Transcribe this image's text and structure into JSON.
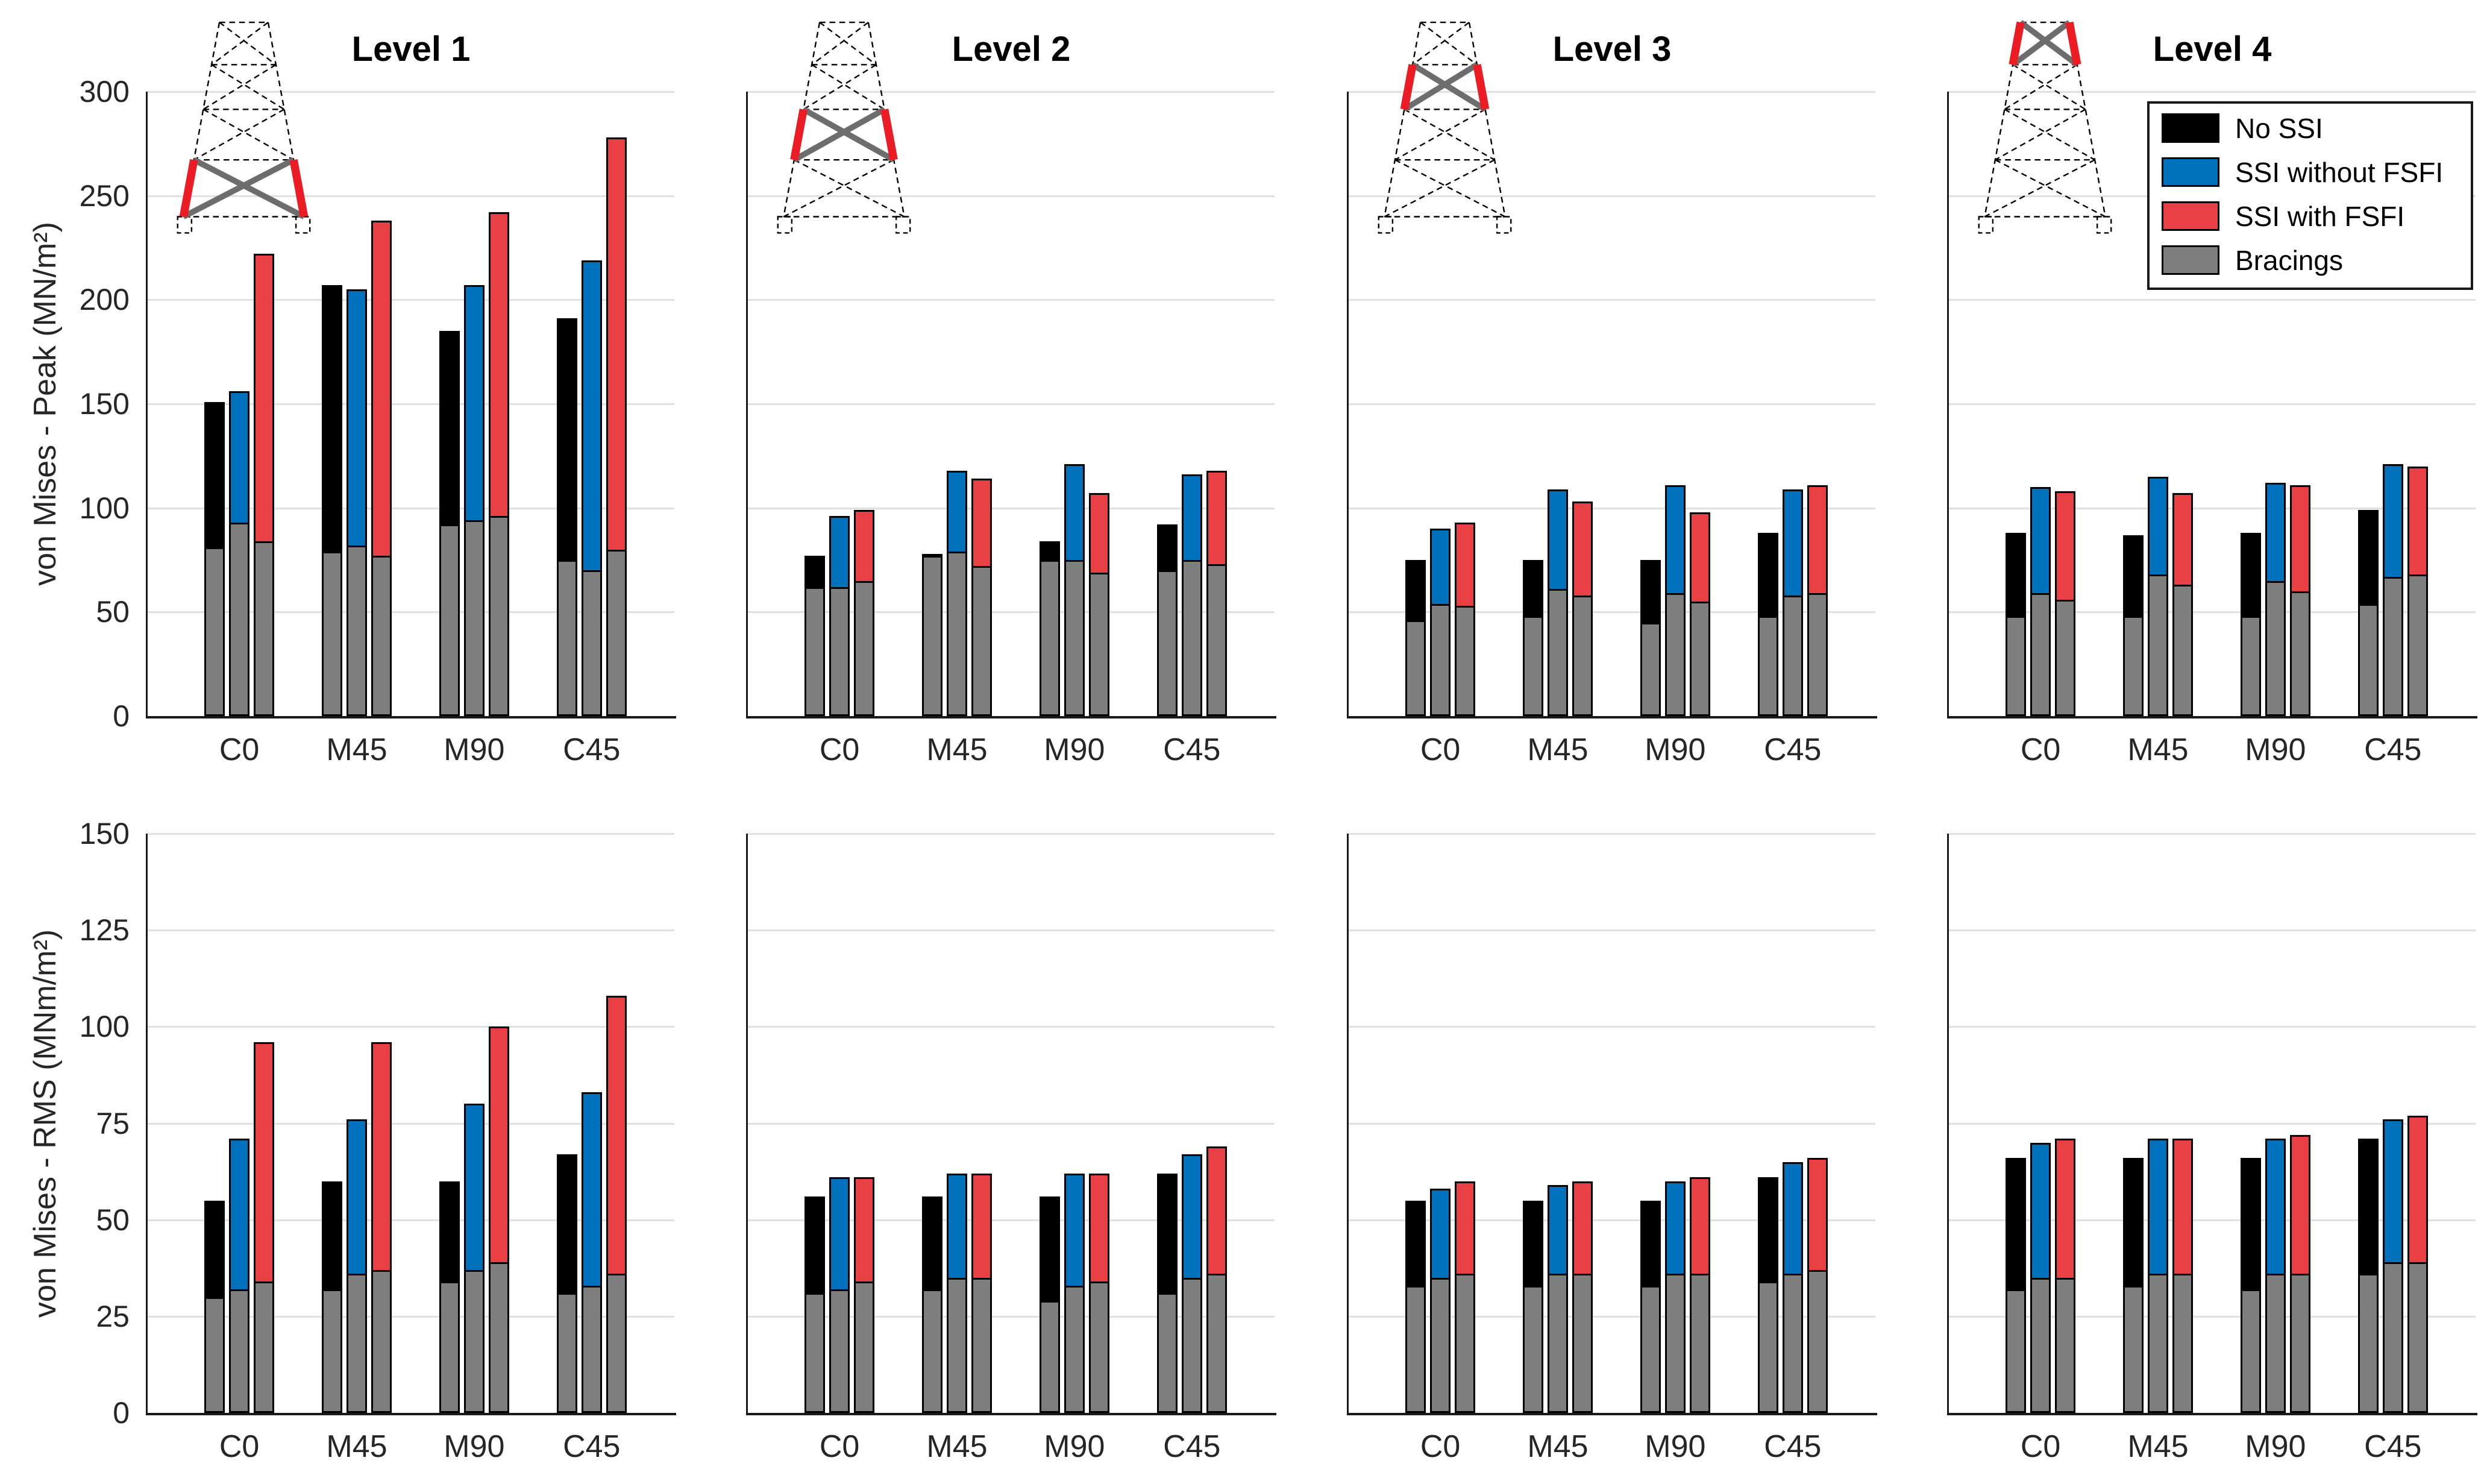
{
  "figure": {
    "background": "#FFFFFF",
    "titles": [
      "Level 1",
      "Level 2",
      "Level 3",
      "Level 4"
    ],
    "legend": {
      "items": [
        {
          "label": "No SSI",
          "color": "#000000"
        },
        {
          "label": "SSI without FSFI",
          "color": "#0072BD"
        },
        {
          "label": "SSI with FSFI",
          "color": "#E84045"
        },
        {
          "label": "Bracings",
          "color": "#7F7F7F"
        }
      ]
    },
    "icon_colors": {
      "highlight_leg_red": "#EC1C24",
      "highlight_brace_gray": "#6D6D6D",
      "outline": "#000000"
    }
  },
  "chart_data": {
    "type": "bar",
    "categories": [
      "C0",
      "M45",
      "M90",
      "C45"
    ],
    "series": [
      "No SSI",
      "SSI without FSFI",
      "SSI with FSFI"
    ],
    "overlay_series": "Bracings",
    "colors": {
      "No SSI": "#000000",
      "SSI without FSFI": "#0072BD",
      "SSI with FSFI": "#E84045",
      "Bracings": "#7F7F7F"
    },
    "grid": "horizontal",
    "legend_position": "top-right of Level 4 peak panel",
    "rows": [
      {
        "ylabel": "von Mises - Peak (MN/m²)",
        "ylim": [
          0,
          300
        ],
        "ytick_step": 50,
        "panels": [
          {
            "title": "Level 1",
            "highlighted_section": 1,
            "main": [
              [
                151,
                156,
                222
              ],
              [
                207,
                205,
                238
              ],
              [
                185,
                207,
                242
              ],
              [
                191,
                219,
                278
              ]
            ],
            "bracings": [
              [
                81,
                93,
                84
              ],
              [
                79,
                82,
                77
              ],
              [
                92,
                94,
                96
              ],
              [
                75,
                70,
                80
              ]
            ]
          },
          {
            "title": "Level 2",
            "highlighted_section": 2,
            "main": [
              [
                77,
                96,
                99
              ],
              [
                78,
                118,
                114
              ],
              [
                84,
                121,
                107
              ],
              [
                92,
                116,
                118
              ]
            ],
            "bracings": [
              [
                62,
                62,
                65
              ],
              [
                77,
                79,
                72
              ],
              [
                75,
                75,
                69
              ],
              [
                70,
                75,
                73
              ]
            ]
          },
          {
            "title": "Level 3",
            "highlighted_section": 3,
            "main": [
              [
                75,
                90,
                93
              ],
              [
                75,
                109,
                103
              ],
              [
                75,
                111,
                98
              ],
              [
                88,
                109,
                111
              ]
            ],
            "bracings": [
              [
                46,
                54,
                53
              ],
              [
                48,
                61,
                58
              ],
              [
                45,
                59,
                55
              ],
              [
                48,
                58,
                59
              ]
            ]
          },
          {
            "title": "Level 4",
            "highlighted_section": 4,
            "main": [
              [
                88,
                110,
                108
              ],
              [
                87,
                115,
                107
              ],
              [
                88,
                112,
                111
              ],
              [
                99,
                121,
                120
              ]
            ],
            "bracings": [
              [
                48,
                59,
                56
              ],
              [
                48,
                68,
                63
              ],
              [
                48,
                65,
                60
              ],
              [
                54,
                67,
                68
              ]
            ]
          }
        ]
      },
      {
        "ylabel": "von Mises - RMS (MNm/m²)",
        "ylim": [
          0,
          150
        ],
        "ytick_step": 25,
        "panels": [
          {
            "main": [
              [
                55,
                71,
                96
              ],
              [
                60,
                76,
                96
              ],
              [
                60,
                80,
                100
              ],
              [
                67,
                83,
                108
              ]
            ],
            "bracings": [
              [
                30,
                32,
                34
              ],
              [
                32,
                36,
                37
              ],
              [
                34,
                37,
                39
              ],
              [
                31,
                33,
                36
              ]
            ]
          },
          {
            "main": [
              [
                56,
                61,
                61
              ],
              [
                56,
                62,
                62
              ],
              [
                56,
                62,
                62
              ],
              [
                62,
                67,
                69
              ]
            ],
            "bracings": [
              [
                31,
                32,
                34
              ],
              [
                32,
                35,
                35
              ],
              [
                29,
                33,
                34
              ],
              [
                31,
                35,
                36
              ]
            ]
          },
          {
            "main": [
              [
                55,
                58,
                60
              ],
              [
                55,
                59,
                60
              ],
              [
                55,
                60,
                61
              ],
              [
                61,
                65,
                66
              ]
            ],
            "bracings": [
              [
                33,
                35,
                36
              ],
              [
                33,
                36,
                36
              ],
              [
                33,
                36,
                36
              ],
              [
                34,
                36,
                37
              ]
            ]
          },
          {
            "main": [
              [
                66,
                70,
                71
              ],
              [
                66,
                71,
                71
              ],
              [
                66,
                71,
                72
              ],
              [
                71,
                76,
                77
              ]
            ],
            "bracings": [
              [
                32,
                35,
                35
              ],
              [
                33,
                36,
                36
              ],
              [
                32,
                36,
                36
              ],
              [
                36,
                39,
                39
              ]
            ]
          }
        ]
      }
    ]
  }
}
